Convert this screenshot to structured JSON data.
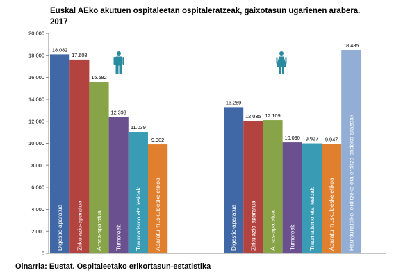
{
  "title_line1": "Euskal AEko akutuen ospitaleetan ospitaleratzeak, gaixotasun ugarienen arabera.",
  "title_line2": "2017",
  "source": "Oinarria: Eustat. Ospitaleetako erikortasun-estatistika",
  "icons": {
    "left": "man-icon",
    "right": "woman-icon"
  },
  "colors": {
    "men_icon": "#2a8a9e",
    "women_icon": "#2a8a9e"
  },
  "chart_data": {
    "type": "bar",
    "ylim": [
      0,
      20000
    ],
    "yticks": [
      0,
      2000,
      4000,
      6000,
      8000,
      10000,
      12000,
      14000,
      16000,
      18000,
      20000
    ],
    "ytick_labels": [
      "0",
      "2.000",
      "4.000",
      "6.000",
      "8.000",
      "10.000",
      "12.000",
      "14.000",
      "16.000",
      "18.000",
      "20.000"
    ],
    "groups": [
      {
        "icon": "man-icon",
        "bars": [
          {
            "label": "Digestio-aparatua",
            "value": 18082,
            "value_label": "18.082",
            "color": "#4068a6"
          },
          {
            "label": "Zirkulazio-aparatua",
            "value": 17608,
            "value_label": "17.608",
            "color": "#b2433f"
          },
          {
            "label": "Arnas-aparatua",
            "value": 15582,
            "value_label": "15.582",
            "color": "#88a448"
          },
          {
            "label": "Tumoreak",
            "value": 12393,
            "value_label": "12.393",
            "color": "#6b5090"
          },
          {
            "label": "Traumatismo eta lesioak",
            "value": 11039,
            "value_label": "11.039",
            "color": "#3a9bb5"
          },
          {
            "label": "Aparatu muskuloeskeletikoa",
            "value": 9902,
            "value_label": "9.902",
            "color": "#e07f2e"
          }
        ]
      },
      {
        "icon": "woman-icon",
        "bars": [
          {
            "label": "Digestio-aparatua",
            "value": 13289,
            "value_label": "13.289",
            "color": "#4068a6"
          },
          {
            "label": "Zirkulazio-aparatua",
            "value": 12035,
            "value_label": "12.035",
            "color": "#b2433f"
          },
          {
            "label": "Arnas-aparatua",
            "value": 12109,
            "value_label": "12.109",
            "color": "#88a448"
          },
          {
            "label": "Tumoreak",
            "value": 10090,
            "value_label": "10.090",
            "color": "#6b5090"
          },
          {
            "label": "Traumatismo eta lesioak",
            "value": 9997,
            "value_label": "9.997",
            "color": "#3a9bb5"
          },
          {
            "label": "Aparatu muskuloeskeletikoa",
            "value": 9947,
            "value_label": "9.947",
            "color": "#e07f2e"
          },
          {
            "label": "Haurdunaldiko, erditzeko eta erditze ondoko arazoak",
            "value": 18485,
            "value_label": "18.485",
            "color": "#93aed4"
          }
        ]
      }
    ]
  }
}
